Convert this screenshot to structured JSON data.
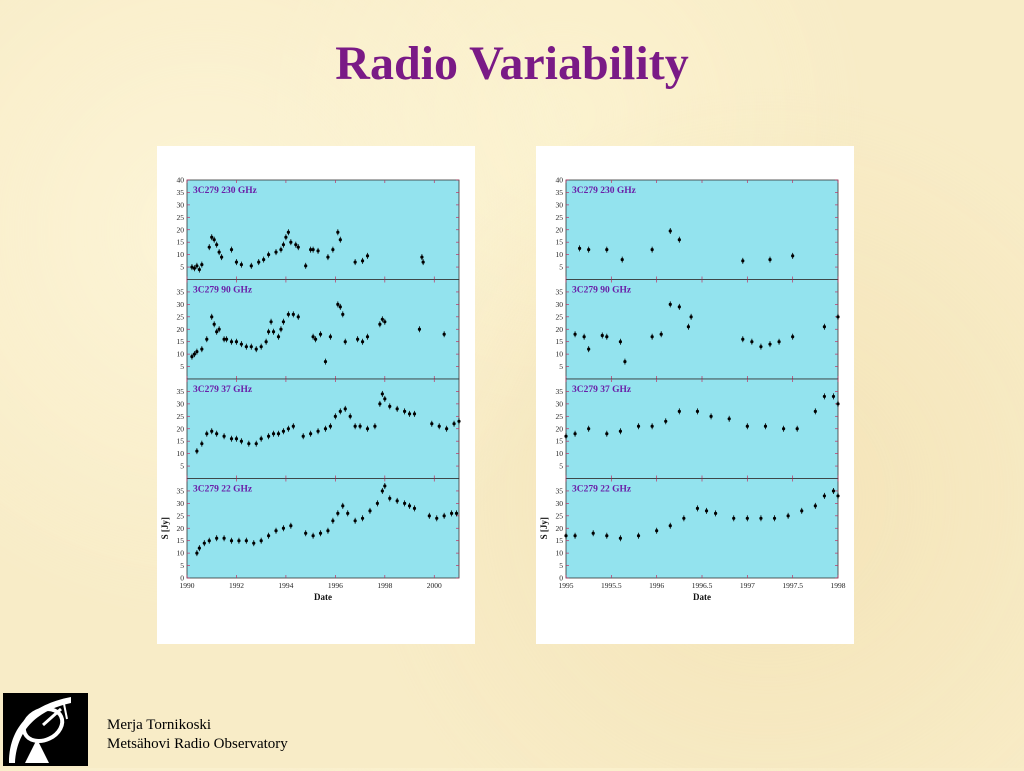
{
  "slide": {
    "title": "Radio Variability",
    "author": "Merja Tornikoski",
    "affiliation": "Metsähovi Radio Observatory"
  },
  "colors": {
    "title": "#7a1a86",
    "panel_bg": "#93e3ee",
    "panel_label": "#6a1fa8",
    "markers": "#000000",
    "frame_ticks": "#c03060"
  },
  "chart_data": [
    {
      "type": "scatter",
      "xlabel": "Date",
      "ylabel": "S [Jy]",
      "xlim": [
        1990,
        2001
      ],
      "xticks": [
        1990,
        1992,
        1994,
        1996,
        1998,
        2000
      ],
      "panels": [
        {
          "label": "3C279  230 GHz",
          "ylim": [
            0,
            40
          ],
          "yticks": [
            5,
            10,
            15,
            20,
            25,
            30,
            35,
            40
          ],
          "points": [
            [
              1990.2,
              5
            ],
            [
              1990.3,
              4.5
            ],
            [
              1990.4,
              5.5
            ],
            [
              1990.5,
              4
            ],
            [
              1990.6,
              6
            ],
            [
              1990.9,
              13
            ],
            [
              1991.0,
              17
            ],
            [
              1991.1,
              16
            ],
            [
              1991.2,
              14
            ],
            [
              1991.3,
              11
            ],
            [
              1991.4,
              9
            ],
            [
              1991.8,
              12
            ],
            [
              1992.0,
              7
            ],
            [
              1992.2,
              6
            ],
            [
              1992.6,
              5.5
            ],
            [
              1992.9,
              7
            ],
            [
              1993.1,
              8
            ],
            [
              1993.3,
              10
            ],
            [
              1993.6,
              11
            ],
            [
              1993.8,
              12
            ],
            [
              1993.9,
              14
            ],
            [
              1994.0,
              17
            ],
            [
              1994.1,
              19
            ],
            [
              1994.2,
              15
            ],
            [
              1994.4,
              14
            ],
            [
              1994.5,
              13
            ],
            [
              1994.8,
              5.5
            ],
            [
              1995.0,
              12
            ],
            [
              1995.1,
              12
            ],
            [
              1995.3,
              11.5
            ],
            [
              1995.7,
              9
            ],
            [
              1995.9,
              12
            ],
            [
              1996.1,
              19
            ],
            [
              1996.2,
              16
            ],
            [
              1996.8,
              7
            ],
            [
              1997.1,
              7.5
            ],
            [
              1997.3,
              9.5
            ],
            [
              1999.5,
              9
            ],
            [
              1999.55,
              7
            ]
          ]
        },
        {
          "label": "3C279  90 GHz",
          "ylim": [
            0,
            40
          ],
          "yticks": [
            5,
            10,
            15,
            20,
            25,
            30,
            35
          ],
          "points": [
            [
              1990.2,
              9
            ],
            [
              1990.3,
              10
            ],
            [
              1990.4,
              11
            ],
            [
              1990.6,
              12
            ],
            [
              1990.8,
              16
            ],
            [
              1991.0,
              25
            ],
            [
              1991.1,
              22
            ],
            [
              1991.2,
              19
            ],
            [
              1991.3,
              20
            ],
            [
              1991.5,
              16
            ],
            [
              1991.6,
              16
            ],
            [
              1991.8,
              15
            ],
            [
              1992.0,
              15
            ],
            [
              1992.2,
              14
            ],
            [
              1992.4,
              13
            ],
            [
              1992.6,
              13
            ],
            [
              1992.8,
              12
            ],
            [
              1993.0,
              13
            ],
            [
              1993.2,
              15
            ],
            [
              1993.3,
              19
            ],
            [
              1993.4,
              23
            ],
            [
              1993.5,
              19
            ],
            [
              1993.7,
              17
            ],
            [
              1993.8,
              20
            ],
            [
              1993.9,
              23
            ],
            [
              1994.1,
              26
            ],
            [
              1994.3,
              26
            ],
            [
              1994.5,
              25
            ],
            [
              1995.1,
              17
            ],
            [
              1995.2,
              16
            ],
            [
              1995.4,
              18
            ],
            [
              1995.6,
              7
            ],
            [
              1995.8,
              17
            ],
            [
              1996.1,
              30
            ],
            [
              1996.2,
              29
            ],
            [
              1996.3,
              26
            ],
            [
              1996.4,
              15
            ],
            [
              1996.9,
              16
            ],
            [
              1997.1,
              15
            ],
            [
              1997.3,
              17
            ],
            [
              1997.8,
              22
            ],
            [
              1997.9,
              24
            ],
            [
              1998.0,
              23
            ],
            [
              1999.4,
              20
            ],
            [
              2000.4,
              18
            ]
          ]
        },
        {
          "label": "3C279  37 GHz",
          "ylim": [
            0,
            40
          ],
          "yticks": [
            5,
            10,
            15,
            20,
            25,
            30,
            35
          ],
          "points": [
            [
              1990.4,
              11
            ],
            [
              1990.6,
              14
            ],
            [
              1990.8,
              18
            ],
            [
              1991.0,
              19
            ],
            [
              1991.2,
              18
            ],
            [
              1991.5,
              17
            ],
            [
              1991.8,
              16
            ],
            [
              1992.0,
              16
            ],
            [
              1992.2,
              15
            ],
            [
              1992.5,
              14
            ],
            [
              1992.8,
              14
            ],
            [
              1993.0,
              16
            ],
            [
              1993.3,
              17
            ],
            [
              1993.5,
              18
            ],
            [
              1993.7,
              18
            ],
            [
              1993.9,
              19
            ],
            [
              1994.1,
              20
            ],
            [
              1994.3,
              21
            ],
            [
              1994.7,
              17
            ],
            [
              1995.0,
              18
            ],
            [
              1995.3,
              19
            ],
            [
              1995.6,
              20
            ],
            [
              1995.8,
              21
            ],
            [
              1996.0,
              25
            ],
            [
              1996.2,
              27
            ],
            [
              1996.4,
              28
            ],
            [
              1996.6,
              25
            ],
            [
              1996.8,
              21
            ],
            [
              1997.0,
              21
            ],
            [
              1997.3,
              20
            ],
            [
              1997.6,
              21
            ],
            [
              1997.8,
              30
            ],
            [
              1997.9,
              34
            ],
            [
              1998.0,
              32
            ],
            [
              1998.2,
              29
            ],
            [
              1998.5,
              28
            ],
            [
              1998.8,
              27
            ],
            [
              1999.0,
              26
            ],
            [
              1999.2,
              26
            ],
            [
              1999.9,
              22
            ],
            [
              2000.2,
              21
            ],
            [
              2000.5,
              20
            ],
            [
              2000.8,
              22
            ],
            [
              2001.0,
              23
            ]
          ]
        },
        {
          "label": "3C279  22 GHz",
          "ylim": [
            0,
            40
          ],
          "yticks": [
            0,
            5,
            10,
            15,
            20,
            25,
            30,
            35
          ],
          "points": [
            [
              1990.4,
              10
            ],
            [
              1990.5,
              12
            ],
            [
              1990.7,
              14
            ],
            [
              1990.9,
              15
            ],
            [
              1991.2,
              16
            ],
            [
              1991.5,
              16
            ],
            [
              1991.8,
              15
            ],
            [
              1992.1,
              15
            ],
            [
              1992.4,
              15
            ],
            [
              1992.7,
              14
            ],
            [
              1993.0,
              15
            ],
            [
              1993.3,
              17
            ],
            [
              1993.6,
              19
            ],
            [
              1993.9,
              20
            ],
            [
              1994.2,
              21
            ],
            [
              1994.8,
              18
            ],
            [
              1995.1,
              17
            ],
            [
              1995.4,
              18
            ],
            [
              1995.7,
              19
            ],
            [
              1995.9,
              23
            ],
            [
              1996.1,
              26
            ],
            [
              1996.3,
              29
            ],
            [
              1996.5,
              26
            ],
            [
              1996.8,
              23
            ],
            [
              1997.1,
              24
            ],
            [
              1997.4,
              27
            ],
            [
              1997.7,
              30
            ],
            [
              1997.9,
              35
            ],
            [
              1998.0,
              37
            ],
            [
              1998.2,
              32
            ],
            [
              1998.5,
              31
            ],
            [
              1998.8,
              30
            ],
            [
              1999.0,
              29
            ],
            [
              1999.2,
              28
            ],
            [
              1999.8,
              25
            ],
            [
              2000.1,
              24
            ],
            [
              2000.4,
              25
            ],
            [
              2000.7,
              26
            ],
            [
              2000.9,
              26
            ]
          ]
        }
      ]
    },
    {
      "type": "scatter",
      "xlabel": "Date",
      "ylabel": "S [Jy]",
      "xlim": [
        1995,
        1998
      ],
      "xticks": [
        "1995",
        "1995.5",
        "1996",
        "1996.5",
        "1997",
        "1997.5",
        "1998"
      ],
      "panels": [
        {
          "label": "3C279  230 GHz",
          "ylim": [
            0,
            40
          ],
          "yticks": [
            5,
            10,
            15,
            20,
            25,
            30,
            35,
            40
          ],
          "points": [
            [
              1995.15,
              12.5
            ],
            [
              1995.25,
              12
            ],
            [
              1995.45,
              12
            ],
            [
              1995.62,
              8
            ],
            [
              1995.95,
              12
            ],
            [
              1996.15,
              19.5
            ],
            [
              1996.25,
              16
            ],
            [
              1996.95,
              7.5
            ],
            [
              1997.25,
              8
            ],
            [
              1997.5,
              9.5
            ]
          ]
        },
        {
          "label": "3C279  90 GHz",
          "ylim": [
            0,
            40
          ],
          "yticks": [
            5,
            10,
            15,
            20,
            25,
            30,
            35
          ],
          "points": [
            [
              1995.1,
              18
            ],
            [
              1995.2,
              17
            ],
            [
              1995.25,
              12
            ],
            [
              1995.4,
              17.5
            ],
            [
              1995.45,
              17
            ],
            [
              1995.6,
              15
            ],
            [
              1995.65,
              7
            ],
            [
              1995.95,
              17
            ],
            [
              1996.05,
              18
            ],
            [
              1996.15,
              30
            ],
            [
              1996.25,
              29
            ],
            [
              1996.35,
              21
            ],
            [
              1996.38,
              25
            ],
            [
              1996.95,
              16
            ],
            [
              1997.05,
              15
            ],
            [
              1997.15,
              13
            ],
            [
              1997.25,
              14
            ],
            [
              1997.35,
              15
            ],
            [
              1997.5,
              17
            ],
            [
              1997.85,
              21
            ],
            [
              1998.0,
              25
            ]
          ]
        },
        {
          "label": "3C279  37 GHz",
          "ylim": [
            0,
            40
          ],
          "yticks": [
            5,
            10,
            15,
            20,
            25,
            30,
            35
          ],
          "points": [
            [
              1995.0,
              17
            ],
            [
              1995.1,
              18
            ],
            [
              1995.25,
              20
            ],
            [
              1995.45,
              18
            ],
            [
              1995.6,
              19
            ],
            [
              1995.8,
              21
            ],
            [
              1995.95,
              21
            ],
            [
              1996.1,
              23
            ],
            [
              1996.25,
              27
            ],
            [
              1996.45,
              27
            ],
            [
              1996.6,
              25
            ],
            [
              1996.8,
              24
            ],
            [
              1997.0,
              21
            ],
            [
              1997.2,
              21
            ],
            [
              1997.4,
              20
            ],
            [
              1997.55,
              20
            ],
            [
              1997.75,
              27
            ],
            [
              1997.85,
              33
            ],
            [
              1997.95,
              33
            ],
            [
              1998.0,
              30
            ]
          ]
        },
        {
          "label": "3C279  22 GHz",
          "ylim": [
            0,
            40
          ],
          "yticks": [
            0,
            5,
            10,
            15,
            20,
            25,
            30,
            35
          ],
          "points": [
            [
              1995.0,
              17
            ],
            [
              1995.1,
              17
            ],
            [
              1995.3,
              18
            ],
            [
              1995.45,
              17
            ],
            [
              1995.6,
              16
            ],
            [
              1995.8,
              17
            ],
            [
              1996.0,
              19
            ],
            [
              1996.15,
              21
            ],
            [
              1996.3,
              24
            ],
            [
              1996.45,
              28
            ],
            [
              1996.55,
              27
            ],
            [
              1996.65,
              26
            ],
            [
              1996.85,
              24
            ],
            [
              1997.0,
              24
            ],
            [
              1997.15,
              24
            ],
            [
              1997.3,
              24
            ],
            [
              1997.45,
              25
            ],
            [
              1997.6,
              27
            ],
            [
              1997.75,
              29
            ],
            [
              1997.85,
              33
            ],
            [
              1997.95,
              35
            ],
            [
              1998.0,
              33
            ]
          ]
        }
      ]
    }
  ]
}
